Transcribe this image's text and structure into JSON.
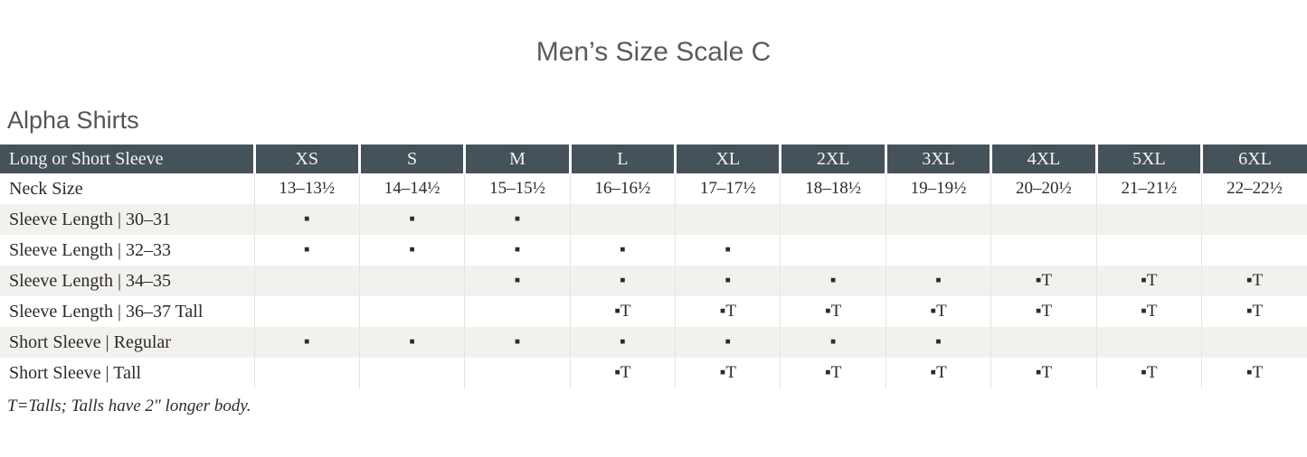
{
  "page": {
    "title": "Men’s Size Scale C",
    "section_heading": "Alpha Shirts",
    "footnote": "T=Talls; Talls have 2″ longer body."
  },
  "colors": {
    "header_bg": "#46525a",
    "header_text": "#f3f4f3",
    "alt_row_bg": "#f2f1ee",
    "body_text": "#2d2a27",
    "heading_text": "#585c5f",
    "column_line": "#e7e5e2"
  },
  "legend": {
    "available_marker": "▪",
    "tall_marker": "▪T"
  },
  "table": {
    "header": [
      "Long or Short Sleeve",
      "XS",
      "S",
      "M",
      "L",
      "XL",
      "2XL",
      "3XL",
      "4XL",
      "5XL",
      "6XL"
    ],
    "rows": [
      {
        "label": "Neck Size",
        "cells": [
          "13–13½",
          "14–14½",
          "15–15½",
          "16–16½",
          "17–17½",
          "18–18½",
          "19–19½",
          "20–20½",
          "21–21½",
          "22–22½"
        ]
      },
      {
        "label": "Sleeve Length  |  30–31",
        "cells": [
          "▪",
          "▪",
          "▪",
          "",
          "",
          "",
          "",
          "",
          "",
          ""
        ]
      },
      {
        "label": "Sleeve Length  |  32–33",
        "cells": [
          "▪",
          "▪",
          "▪",
          "▪",
          "▪",
          "",
          "",
          "",
          "",
          ""
        ]
      },
      {
        "label": "Sleeve Length  |  34–35",
        "cells": [
          "",
          "",
          "▪",
          "▪",
          "▪",
          "▪",
          "▪",
          "▪T",
          "▪T",
          "▪T"
        ]
      },
      {
        "label": "Sleeve Length  |  36–37 Tall",
        "cells": [
          "",
          "",
          "",
          "▪T",
          "▪T",
          "▪T",
          "▪T",
          "▪T",
          "▪T",
          "▪T"
        ]
      },
      {
        "label": "Short Sleeve  |  Regular",
        "cells": [
          "▪",
          "▪",
          "▪",
          "▪",
          "▪",
          "▪",
          "▪",
          "",
          "",
          ""
        ]
      },
      {
        "label": "Short Sleeve  |  Tall",
        "cells": [
          "",
          "",
          "",
          "▪T",
          "▪T",
          "▪T",
          "▪T",
          "▪T",
          "▪T",
          "▪T"
        ]
      }
    ]
  }
}
